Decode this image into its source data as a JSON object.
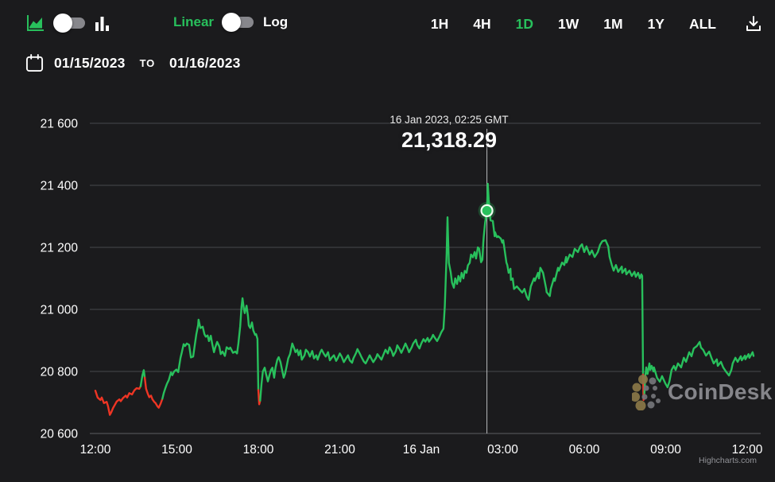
{
  "toolbar": {
    "scale_linear_label": "Linear",
    "scale_log_label": "Log",
    "ranges": [
      "1H",
      "4H",
      "1D",
      "1W",
      "1M",
      "1Y",
      "ALL"
    ],
    "active_range": "1D",
    "icons": [
      "area-chart-icon",
      "bar-chart-icon",
      "download-icon"
    ]
  },
  "date_range": {
    "from": "01/15/2023",
    "separator": "TO",
    "to": "01/16/2023"
  },
  "tooltip": {
    "datetime": "16 Jan 2023, 02:25 GMT",
    "price": "21,318.29"
  },
  "watermark": {
    "text": "CoinDesk"
  },
  "credits": {
    "text": "Highcharts.com"
  },
  "colors": {
    "background": "#1b1b1d",
    "up": "#28c05c",
    "down": "#ee3524",
    "grid": "#47494d",
    "axis_line": "#5d5f63",
    "axis_text": "#ffffff",
    "crosshair": "#c9cacc",
    "watermark_text": "#8e8f94",
    "watermark_dots": "#8a7848"
  },
  "chart_data": {
    "type": "line",
    "title": "",
    "xlabel": "",
    "ylabel": "",
    "x_unit": "minutes since 15 Jan 2023 12:00 GMT",
    "x_range": [
      0,
      1456
    ],
    "ylim": [
      20600,
      21620
    ],
    "grid": "horizontal",
    "y_ticks": [
      20600,
      20800,
      21000,
      21200,
      21400,
      21600
    ],
    "x_ticks": [
      {
        "t": 0,
        "label": "12:00"
      },
      {
        "t": 180,
        "label": "15:00"
      },
      {
        "t": 360,
        "label": "18:00"
      },
      {
        "t": 540,
        "label": "21:00"
      },
      {
        "t": 720,
        "label": "16 Jan"
      },
      {
        "t": 900,
        "label": "03:00"
      },
      {
        "t": 1080,
        "label": "06:00"
      },
      {
        "t": 1260,
        "label": "09:00"
      },
      {
        "t": 1440,
        "label": "12:00"
      }
    ],
    "selected_point": {
      "t": 865,
      "value": 21318.29,
      "datetime": "16 Jan 2023, 02:25 GMT"
    },
    "red_ranges": [
      [
        0,
        100
      ],
      [
        109,
        148
      ],
      [
        360,
        364
      ],
      [
        1210,
        1213
      ]
    ],
    "points": [
      [
        0,
        20738
      ],
      [
        5,
        20716
      ],
      [
        11,
        20708
      ],
      [
        14,
        20716
      ],
      [
        19,
        20698
      ],
      [
        25,
        20702
      ],
      [
        28,
        20688
      ],
      [
        32,
        20660
      ],
      [
        35,
        20668
      ],
      [
        39,
        20682
      ],
      [
        44,
        20695
      ],
      [
        47,
        20703
      ],
      [
        53,
        20710
      ],
      [
        56,
        20704
      ],
      [
        61,
        20714
      ],
      [
        67,
        20722
      ],
      [
        70,
        20716
      ],
      [
        75,
        20730
      ],
      [
        81,
        20726
      ],
      [
        86,
        20739
      ],
      [
        91,
        20746
      ],
      [
        97,
        20744
      ],
      [
        100,
        20752
      ],
      [
        104,
        20788
      ],
      [
        107,
        20804
      ],
      [
        109,
        20780
      ],
      [
        112,
        20744
      ],
      [
        116,
        20727
      ],
      [
        119,
        20717
      ],
      [
        123,
        20722
      ],
      [
        126,
        20710
      ],
      [
        130,
        20702
      ],
      [
        133,
        20698
      ],
      [
        137,
        20688
      ],
      [
        140,
        20683
      ],
      [
        144,
        20696
      ],
      [
        148,
        20712
      ],
      [
        151,
        20730
      ],
      [
        155,
        20748
      ],
      [
        158,
        20760
      ],
      [
        162,
        20772
      ],
      [
        167,
        20797
      ],
      [
        170,
        20788
      ],
      [
        174,
        20800
      ],
      [
        179,
        20806
      ],
      [
        183,
        20798
      ],
      [
        188,
        20844
      ],
      [
        191,
        20862
      ],
      [
        195,
        20888
      ],
      [
        198,
        20882
      ],
      [
        202,
        20890
      ],
      [
        207,
        20886
      ],
      [
        211,
        20845
      ],
      [
        216,
        20848
      ],
      [
        220,
        20890
      ],
      [
        223,
        20920
      ],
      [
        227,
        20950
      ],
      [
        228,
        20967
      ],
      [
        232,
        20940
      ],
      [
        237,
        20944
      ],
      [
        241,
        20920
      ],
      [
        244,
        20912
      ],
      [
        248,
        20916
      ],
      [
        251,
        20898
      ],
      [
        255,
        20915
      ],
      [
        258,
        20890
      ],
      [
        262,
        20862
      ],
      [
        265,
        20878
      ],
      [
        269,
        20895
      ],
      [
        274,
        20880
      ],
      [
        277,
        20856
      ],
      [
        281,
        20864
      ],
      [
        286,
        20850
      ],
      [
        290,
        20878
      ],
      [
        295,
        20872
      ],
      [
        298,
        20877
      ],
      [
        304,
        20860
      ],
      [
        309,
        20864
      ],
      [
        313,
        20858
      ],
      [
        316,
        20890
      ],
      [
        320,
        20946
      ],
      [
        323,
        21010
      ],
      [
        325,
        21036
      ],
      [
        328,
        21002
      ],
      [
        330,
        20988
      ],
      [
        334,
        21012
      ],
      [
        337,
        20980
      ],
      [
        339,
        20948
      ],
      [
        342,
        20940
      ],
      [
        346,
        20958
      ],
      [
        349,
        20932
      ],
      [
        353,
        20918
      ],
      [
        355,
        20920
      ],
      [
        358,
        20905
      ],
      [
        360,
        20740
      ],
      [
        362,
        20694
      ],
      [
        364,
        20706
      ],
      [
        367,
        20760
      ],
      [
        370,
        20800
      ],
      [
        374,
        20812
      ],
      [
        377,
        20792
      ],
      [
        381,
        20768
      ],
      [
        384,
        20785
      ],
      [
        388,
        20805
      ],
      [
        391,
        20812
      ],
      [
        395,
        20780
      ],
      [
        398,
        20812
      ],
      [
        402,
        20838
      ],
      [
        405,
        20846
      ],
      [
        409,
        20830
      ],
      [
        412,
        20808
      ],
      [
        416,
        20780
      ],
      [
        419,
        20792
      ],
      [
        423,
        20820
      ],
      [
        426,
        20842
      ],
      [
        430,
        20856
      ],
      [
        435,
        20890
      ],
      [
        439,
        20875
      ],
      [
        442,
        20862
      ],
      [
        446,
        20870
      ],
      [
        449,
        20852
      ],
      [
        453,
        20868
      ],
      [
        456,
        20838
      ],
      [
        462,
        20852
      ],
      [
        465,
        20870
      ],
      [
        470,
        20862
      ],
      [
        474,
        20848
      ],
      [
        479,
        20866
      ],
      [
        483,
        20842
      ],
      [
        488,
        20852
      ],
      [
        491,
        20838
      ],
      [
        497,
        20862
      ],
      [
        500,
        20870
      ],
      [
        505,
        20856
      ],
      [
        509,
        20848
      ],
      [
        514,
        20862
      ],
      [
        518,
        20836
      ],
      [
        523,
        20846
      ],
      [
        527,
        20852
      ],
      [
        532,
        20834
      ],
      [
        535,
        20842
      ],
      [
        540,
        20858
      ],
      [
        544,
        20848
      ],
      [
        549,
        20830
      ],
      [
        553,
        20840
      ],
      [
        558,
        20852
      ],
      [
        562,
        20836
      ],
      [
        567,
        20828
      ],
      [
        570,
        20842
      ],
      [
        576,
        20860
      ],
      [
        579,
        20872
      ],
      [
        584,
        20858
      ],
      [
        588,
        20846
      ],
      [
        593,
        20832
      ],
      [
        597,
        20826
      ],
      [
        602,
        20840
      ],
      [
        606,
        20852
      ],
      [
        611,
        20838
      ],
      [
        614,
        20830
      ],
      [
        620,
        20844
      ],
      [
        623,
        20856
      ],
      [
        628,
        20846
      ],
      [
        632,
        20838
      ],
      [
        637,
        20856
      ],
      [
        641,
        20870
      ],
      [
        646,
        20858
      ],
      [
        650,
        20878
      ],
      [
        655,
        20864
      ],
      [
        658,
        20850
      ],
      [
        664,
        20866
      ],
      [
        667,
        20884
      ],
      [
        672,
        20872
      ],
      [
        676,
        20860
      ],
      [
        681,
        20876
      ],
      [
        685,
        20890
      ],
      [
        690,
        20874
      ],
      [
        693,
        20862
      ],
      [
        699,
        20878
      ],
      [
        702,
        20890
      ],
      [
        708,
        20902
      ],
      [
        711,
        20886
      ],
      [
        716,
        20874
      ],
      [
        720,
        20890
      ],
      [
        725,
        20904
      ],
      [
        729,
        20896
      ],
      [
        734,
        20908
      ],
      [
        737,
        20896
      ],
      [
        743,
        20908
      ],
      [
        746,
        20918
      ],
      [
        751,
        20906
      ],
      [
        755,
        20898
      ],
      [
        760,
        20912
      ],
      [
        764,
        20926
      ],
      [
        769,
        20938
      ],
      [
        772,
        21010
      ],
      [
        776,
        21180
      ],
      [
        778,
        21297
      ],
      [
        779,
        21240
      ],
      [
        781,
        21150
      ],
      [
        785,
        21120
      ],
      [
        788,
        21086
      ],
      [
        792,
        21070
      ],
      [
        795,
        21100
      ],
      [
        799,
        21082
      ],
      [
        802,
        21108
      ],
      [
        806,
        21090
      ],
      [
        809,
        21118
      ],
      [
        813,
        21100
      ],
      [
        816,
        21124
      ],
      [
        820,
        21118
      ],
      [
        823,
        21142
      ],
      [
        827,
        21150
      ],
      [
        830,
        21177
      ],
      [
        834,
        21168
      ],
      [
        838,
        21185
      ],
      [
        841,
        21164
      ],
      [
        845,
        21200
      ],
      [
        848,
        21195
      ],
      [
        852,
        21152
      ],
      [
        855,
        21160
      ],
      [
        857,
        21215
      ],
      [
        858,
        21235
      ],
      [
        861,
        21280
      ],
      [
        865,
        21318.29
      ],
      [
        867,
        21405
      ],
      [
        869,
        21355
      ],
      [
        871,
        21320
      ],
      [
        873,
        21287
      ],
      [
        878,
        21285
      ],
      [
        882,
        21236
      ],
      [
        883,
        21249
      ],
      [
        887,
        21233
      ],
      [
        890,
        21236
      ],
      [
        896,
        21228
      ],
      [
        899,
        21215
      ],
      [
        901,
        21223
      ],
      [
        908,
        21151
      ],
      [
        910,
        21143
      ],
      [
        913,
        21118
      ],
      [
        917,
        21131
      ],
      [
        918,
        21095
      ],
      [
        922,
        21100
      ],
      [
        925,
        21066
      ],
      [
        931,
        21074
      ],
      [
        936,
        21066
      ],
      [
        943,
        21054
      ],
      [
        948,
        21066
      ],
      [
        953,
        21041
      ],
      [
        957,
        21031
      ],
      [
        962,
        21074
      ],
      [
        969,
        21100
      ],
      [
        971,
        21092
      ],
      [
        978,
        21118
      ],
      [
        980,
        21100
      ],
      [
        983,
        21134
      ],
      [
        989,
        21118
      ],
      [
        996,
        21066
      ],
      [
        997,
        21056
      ],
      [
        1004,
        21043
      ],
      [
        1006,
        21066
      ],
      [
        1013,
        21100
      ],
      [
        1015,
        21092
      ],
      [
        1022,
        21134
      ],
      [
        1024,
        21125
      ],
      [
        1031,
        21151
      ],
      [
        1036,
        21143
      ],
      [
        1040,
        21169
      ],
      [
        1041,
        21151
      ],
      [
        1048,
        21177
      ],
      [
        1054,
        21169
      ],
      [
        1059,
        21195
      ],
      [
        1066,
        21185
      ],
      [
        1071,
        21203
      ],
      [
        1075,
        21210
      ],
      [
        1080,
        21185
      ],
      [
        1085,
        21203
      ],
      [
        1092,
        21177
      ],
      [
        1097,
        21190
      ],
      [
        1103,
        21169
      ],
      [
        1110,
        21185
      ],
      [
        1115,
        21208
      ],
      [
        1120,
        21220
      ],
      [
        1127,
        21223
      ],
      [
        1133,
        21203
      ],
      [
        1136,
        21169
      ],
      [
        1141,
        21143
      ],
      [
        1145,
        21125
      ],
      [
        1150,
        21143
      ],
      [
        1155,
        21121
      ],
      [
        1163,
        21138
      ],
      [
        1164,
        21118
      ],
      [
        1171,
        21131
      ],
      [
        1173,
        21113
      ],
      [
        1180,
        21125
      ],
      [
        1185,
        21108
      ],
      [
        1191,
        21121
      ],
      [
        1194,
        21105
      ],
      [
        1199,
        21118
      ],
      [
        1203,
        21100
      ],
      [
        1206,
        21113
      ],
      [
        1208,
        21108
      ],
      [
        1210,
        20790
      ],
      [
        1211,
        20708
      ],
      [
        1213,
        20730
      ],
      [
        1215,
        20785
      ],
      [
        1217,
        20813
      ],
      [
        1220,
        20792
      ],
      [
        1224,
        20826
      ],
      [
        1226,
        20805
      ],
      [
        1229,
        20818
      ],
      [
        1233,
        20800
      ],
      [
        1234,
        20813
      ],
      [
        1241,
        20779
      ],
      [
        1247,
        20767
      ],
      [
        1252,
        20785
      ],
      [
        1259,
        20762
      ],
      [
        1264,
        20749
      ],
      [
        1268,
        20767
      ],
      [
        1273,
        20805
      ],
      [
        1278,
        20818
      ],
      [
        1282,
        20805
      ],
      [
        1287,
        20826
      ],
      [
        1294,
        20813
      ],
      [
        1300,
        20844
      ],
      [
        1305,
        20831
      ],
      [
        1312,
        20862
      ],
      [
        1317,
        20849
      ],
      [
        1322,
        20874
      ],
      [
        1329,
        20882
      ],
      [
        1335,
        20895
      ],
      [
        1338,
        20877
      ],
      [
        1343,
        20869
      ],
      [
        1349,
        20851
      ],
      [
        1356,
        20864
      ],
      [
        1361,
        20844
      ],
      [
        1366,
        20826
      ],
      [
        1373,
        20839
      ],
      [
        1375,
        20818
      ],
      [
        1382,
        20831
      ],
      [
        1387,
        20813
      ],
      [
        1393,
        20800
      ],
      [
        1400,
        20787
      ],
      [
        1405,
        20805
      ],
      [
        1408,
        20826
      ],
      [
        1414,
        20844
      ],
      [
        1419,
        20831
      ],
      [
        1426,
        20849
      ],
      [
        1428,
        20836
      ],
      [
        1435,
        20851
      ],
      [
        1436,
        20839
      ],
      [
        1443,
        20856
      ],
      [
        1445,
        20844
      ],
      [
        1452,
        20862
      ],
      [
        1454,
        20850
      ]
    ]
  }
}
